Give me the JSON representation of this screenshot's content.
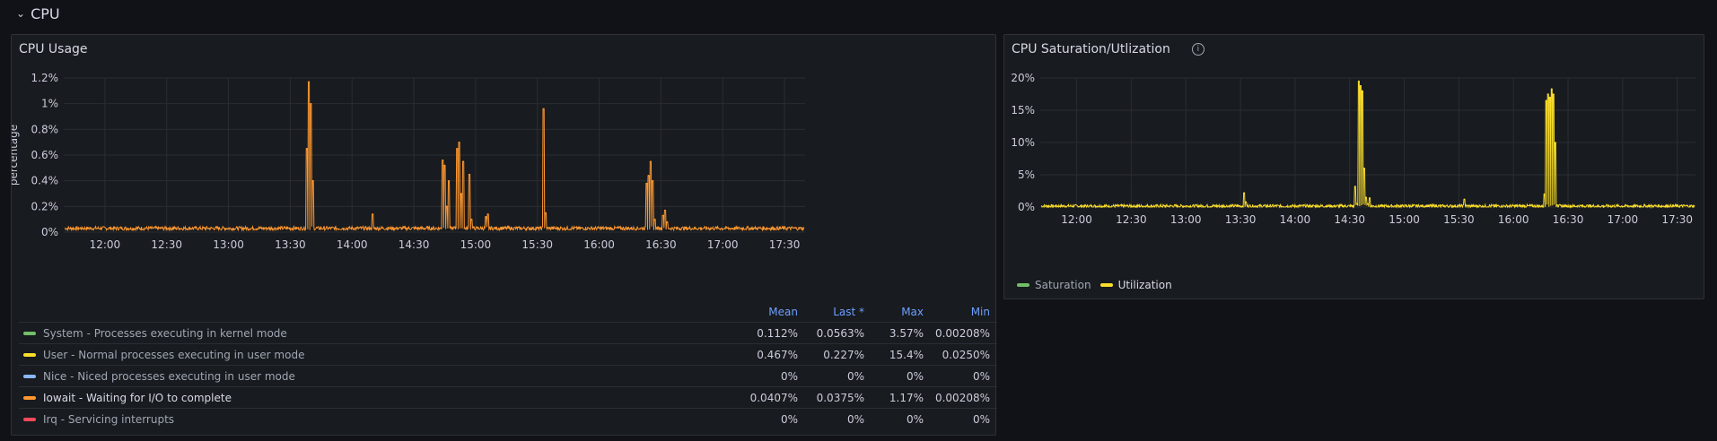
{
  "row": {
    "title": "CPU"
  },
  "panel1": {
    "title": "CPU Usage",
    "ylabel": "percentage",
    "yticks": [
      "1.2%",
      "1%",
      "0.8%",
      "0.6%",
      "0.4%",
      "0.2%",
      "0%"
    ],
    "xticks": [
      "12:00",
      "12:30",
      "13:00",
      "13:30",
      "14:00",
      "14:30",
      "15:00",
      "15:30",
      "16:00",
      "16:30",
      "17:00",
      "17:30"
    ],
    "legend": {
      "headers": {
        "mean": "Mean",
        "last": "Last *",
        "max": "Max",
        "min": "Min"
      },
      "rows": [
        {
          "name": "System - Processes executing in kernel mode",
          "color": "#73bf69",
          "mean": "0.112%",
          "last": "0.0563%",
          "max": "3.57%",
          "min": "0.00208%"
        },
        {
          "name": "User - Normal processes executing in user mode",
          "color": "#fade2a",
          "mean": "0.467%",
          "last": "0.227%",
          "max": "15.4%",
          "min": "0.0250%"
        },
        {
          "name": "Nice - Niced processes executing in user mode",
          "color": "#8ab8ff",
          "mean": "0%",
          "last": "0%",
          "max": "0%",
          "min": "0%"
        },
        {
          "name": "Iowait - Waiting for I/O to complete",
          "color": "#ff9830",
          "mean": "0.0407%",
          "last": "0.0375%",
          "max": "1.17%",
          "min": "0.00208%"
        },
        {
          "name": "Irq - Servicing interrupts",
          "color": "#f2495c",
          "mean": "0%",
          "last": "0%",
          "max": "0%",
          "min": "0%"
        }
      ]
    }
  },
  "panel2": {
    "title": "CPU Saturation/Utlization",
    "info_icon": "info-icon",
    "yticks": [
      "20%",
      "15%",
      "10%",
      "5%",
      "0%"
    ],
    "xticks": [
      "12:00",
      "12:30",
      "13:00",
      "13:30",
      "14:00",
      "14:30",
      "15:00",
      "15:30",
      "16:00",
      "16:30",
      "17:00",
      "17:30"
    ],
    "legend": [
      {
        "name": "Saturation",
        "color": "#73bf69"
      },
      {
        "name": "Utilization",
        "color": "#fade2a"
      }
    ]
  },
  "chart_data": [
    {
      "type": "line",
      "title": "CPU Usage",
      "ylabel": "percentage",
      "ylim": [
        0,
        1.2
      ],
      "xlim": [
        "11:40",
        "17:40"
      ],
      "series": [
        {
          "name": "Iowait - Waiting for I/O to complete",
          "color": "#ff9830",
          "baseline": 0.03,
          "x": [
            "13:38",
            "13:39",
            "13:40",
            "13:41",
            "14:10",
            "14:44",
            "14:45",
            "14:46",
            "14:47",
            "14:51",
            "14:52",
            "14:53",
            "14:54",
            "14:57",
            "14:58",
            "15:05",
            "15:06",
            "15:33",
            "15:34",
            "16:23",
            "16:24",
            "16:25",
            "16:26",
            "16:27",
            "16:31",
            "16:32",
            "16:33"
          ],
          "values": [
            0.65,
            1.17,
            1.0,
            0.4,
            0.14,
            0.56,
            0.52,
            0.2,
            0.4,
            0.65,
            0.7,
            0.3,
            0.55,
            0.45,
            0.1,
            0.12,
            0.14,
            0.96,
            0.15,
            0.38,
            0.44,
            0.55,
            0.4,
            0.1,
            0.13,
            0.17,
            0.08
          ]
        }
      ]
    },
    {
      "type": "line",
      "title": "CPU Saturation/Utlization",
      "ylim": [
        0,
        20
      ],
      "xlim": [
        "11:40",
        "17:40"
      ],
      "series": [
        {
          "name": "Saturation",
          "color": "#73bf69",
          "x": [],
          "values": []
        },
        {
          "name": "Utilization",
          "color": "#fade2a",
          "baseline": 0.15,
          "x": [
            "13:32",
            "13:33",
            "14:33",
            "14:34",
            "14:35",
            "14:36",
            "14:37",
            "14:38",
            "14:39",
            "14:40",
            "14:41",
            "15:33",
            "16:17",
            "16:18",
            "16:19",
            "16:20",
            "16:21",
            "16:22",
            "16:23",
            "16:24"
          ],
          "values": [
            2.2,
            0.8,
            3.2,
            0.5,
            19.5,
            18.8,
            18.0,
            6.0,
            1.5,
            0.5,
            1.4,
            1.2,
            2.0,
            16.5,
            17.5,
            17.0,
            18.3,
            17.5,
            10.0,
            0.3
          ]
        }
      ]
    }
  ]
}
